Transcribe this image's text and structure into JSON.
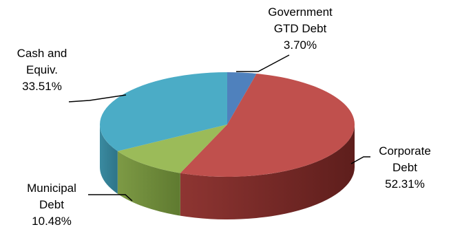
{
  "chart_data": {
    "type": "pie",
    "style": "3d",
    "legend": "none",
    "slices": [
      {
        "name_lines": [
          "Government",
          "GTD Debt"
        ],
        "percent_label": "3.70%",
        "value": 3.7,
        "color": "#4f81bd"
      },
      {
        "name_lines": [
          "Corporate",
          "Debt"
        ],
        "percent_label": "52.31%",
        "value": 52.31,
        "color": "#c0504d"
      },
      {
        "name_lines": [
          "Municipal",
          "Debt"
        ],
        "percent_label": "10.48%",
        "value": 10.48,
        "color": "#9bbb59"
      },
      {
        "name_lines": [
          "Cash and",
          "Equiv."
        ],
        "percent_label": "33.51%",
        "value": 33.51,
        "color": "#4bacc6"
      }
    ]
  }
}
